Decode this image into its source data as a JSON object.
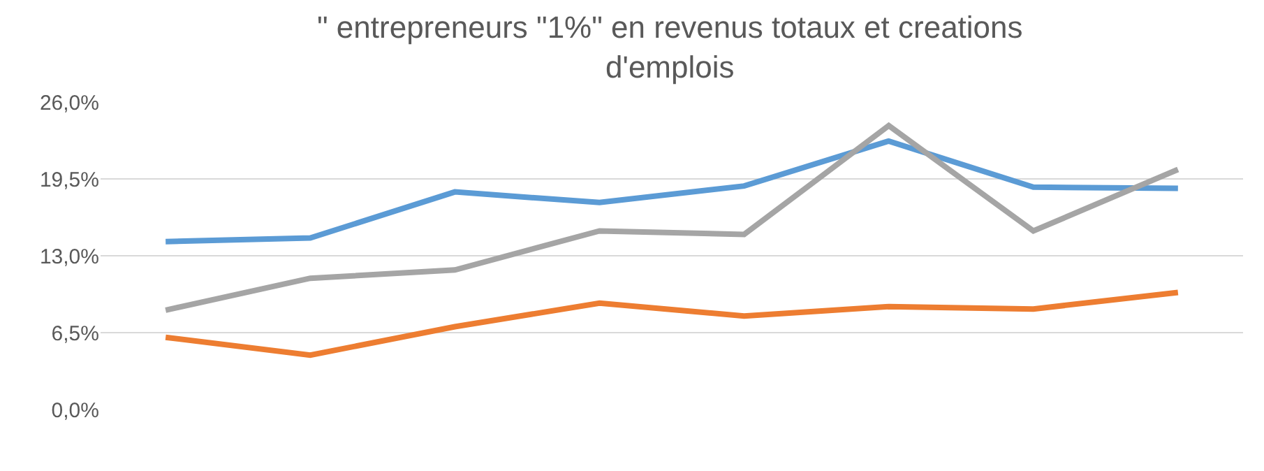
{
  "chart_data": {
    "type": "line",
    "title": "\" entrepreneurs \"1%\" en revenus totaux et creations d'emplois",
    "categories": [
      null,
      null,
      null,
      null,
      null,
      null,
      null,
      null
    ],
    "series": [
      {
        "color": "#5b9bd5",
        "values": [
          14.2,
          14.5,
          18.4,
          17.5,
          18.9,
          22.7,
          18.8,
          18.7
        ]
      },
      {
        "color": "#ed7d31",
        "values": [
          6.1,
          4.6,
          7.0,
          9.0,
          7.9,
          8.7,
          8.5,
          9.9
        ]
      },
      {
        "color": "#a5a5a5",
        "values": [
          8.4,
          11.1,
          11.8,
          15.1,
          14.8,
          24.0,
          15.1,
          20.3
        ]
      }
    ],
    "ylim": [
      0,
      26
    ],
    "yticks": [
      {
        "value": 0,
        "label": "0,0%"
      },
      {
        "value": 6.5,
        "label": "6,5%"
      },
      {
        "value": 13,
        "label": "13,0%"
      },
      {
        "value": 19.5,
        "label": "19,5%"
      },
      {
        "value": 26,
        "label": "26,0%"
      }
    ],
    "grid": "y",
    "marker": "none",
    "line_style": "solid"
  }
}
